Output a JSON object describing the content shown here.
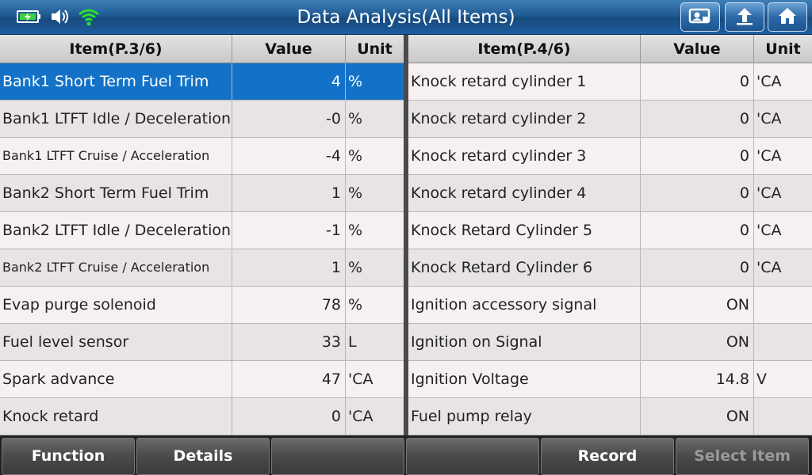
{
  "header": {
    "title": "Data Analysis(All Items)",
    "icons": [
      "battery-charging-icon",
      "speaker-icon",
      "wifi-icon"
    ],
    "buttons": [
      "print-screen-icon",
      "back-arrow-icon",
      "home-icon"
    ]
  },
  "left_table": {
    "columns": {
      "item": "Item(P.3/6)",
      "value": "Value",
      "unit": "Unit"
    },
    "rows": [
      {
        "item": "Bank1 Short Term Fuel Trim",
        "value": "4",
        "unit": "%"
      },
      {
        "item": "Bank1 LTFT Idle / Deceleration",
        "value": "-0",
        "unit": "%"
      },
      {
        "item": "Bank1 LTFT Cruise / Acceleration",
        "value": "-4",
        "unit": "%"
      },
      {
        "item": "Bank2 Short Term Fuel Trim",
        "value": "1",
        "unit": "%"
      },
      {
        "item": "Bank2 LTFT Idle / Deceleration",
        "value": "-1",
        "unit": "%"
      },
      {
        "item": "Bank2 LTFT Cruise / Acceleration",
        "value": "1",
        "unit": "%"
      },
      {
        "item": "Evap purge solenoid",
        "value": "78",
        "unit": "%"
      },
      {
        "item": "Fuel level sensor",
        "value": "33",
        "unit": "L"
      },
      {
        "item": "Spark advance",
        "value": "47",
        "unit": "'CA"
      },
      {
        "item": "Knock retard",
        "value": "0",
        "unit": "'CA"
      }
    ]
  },
  "right_table": {
    "columns": {
      "item": "Item(P.4/6)",
      "value": "Value",
      "unit": "Unit"
    },
    "rows": [
      {
        "item": "Knock retard cylinder 1",
        "value": "0",
        "unit": "'CA"
      },
      {
        "item": "Knock retard cylinder 2",
        "value": "0",
        "unit": "'CA"
      },
      {
        "item": "Knock retard cylinder 3",
        "value": "0",
        "unit": "'CA"
      },
      {
        "item": "Knock retard cylinder 4",
        "value": "0",
        "unit": "'CA"
      },
      {
        "item": "Knock Retard Cylinder 5",
        "value": "0",
        "unit": "'CA"
      },
      {
        "item": "Knock Retard Cylinder 6",
        "value": "0",
        "unit": "'CA"
      },
      {
        "item": "Ignition accessory signal",
        "value": "ON",
        "unit": ""
      },
      {
        "item": "Ignition on Signal",
        "value": "ON",
        "unit": ""
      },
      {
        "item": "Ignition Voltage",
        "value": "14.8",
        "unit": "V"
      },
      {
        "item": "Fuel pump relay",
        "value": "ON",
        "unit": ""
      }
    ]
  },
  "footer": {
    "buttons": [
      "Function",
      "Details",
      "",
      "",
      "Record",
      "Select Item"
    ]
  },
  "colors": {
    "selected_row": "#1372c7",
    "topbar": "#1f5a93"
  }
}
